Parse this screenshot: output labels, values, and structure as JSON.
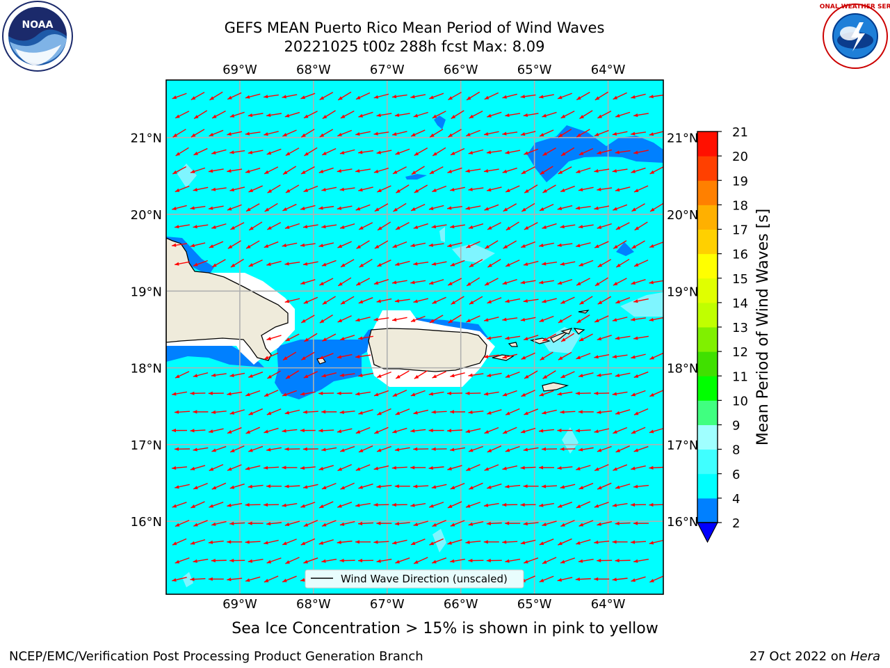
{
  "title": {
    "line1": "GEFS MEAN Puerto Rico Mean Period of Wind Waves",
    "line2": "20221025 t00z 288h fcst   Max: 8.09"
  },
  "map": {
    "lon_labels": [
      "69°W",
      "68°W",
      "67°W",
      "66°W",
      "65°W",
      "64°W"
    ],
    "lat_labels": [
      "21°N",
      "20°N",
      "19°N",
      "18°N",
      "17°N",
      "16°N"
    ],
    "lon_range": [
      -70.0,
      -63.25
    ],
    "lat_range": [
      15.05,
      21.75
    ],
    "field_fill_color": "#00ffff",
    "land_color": "#efebdb",
    "arrow_color": "#ff0000",
    "gridline_color": "#b0b0b0",
    "arrow_direction": "toward west-southwest",
    "legend_label": "Wind Wave Direction (unscaled)"
  },
  "colorbar": {
    "label": "Mean Period of Wind Waves [s]",
    "ticks": [
      "2",
      "4",
      "6",
      "8",
      "9",
      "10",
      "11",
      "12",
      "13",
      "14",
      "15",
      "16",
      "17",
      "18",
      "19",
      "20",
      "21"
    ],
    "levels": [
      2,
      4,
      6,
      8,
      9,
      10,
      11,
      12,
      13,
      14,
      15,
      16,
      17,
      18,
      19,
      20,
      21
    ],
    "colors": [
      "#0080ff",
      "#00ffff",
      "#40ffff",
      "#a0ffff",
      "#40ff80",
      "#00ff00",
      "#40e000",
      "#80f000",
      "#c0ff00",
      "#e0ff00",
      "#ffff00",
      "#ffd000",
      "#ffb000",
      "#ff8000",
      "#ff4000",
      "#ff1000"
    ],
    "underflow_color": "#0000ff"
  },
  "notes": {
    "sea_ice": "Sea Ice Concentration > 15% is shown in pink to yellow"
  },
  "footer": {
    "left": "NCEP/EMC/Verification Post Processing Product Generation Branch",
    "date": "27 Oct 2022 on ",
    "machine": "Hera"
  },
  "logos": {
    "noaa_text": "NOAA",
    "nws_text": "NATIONAL WEATHER SERVICE"
  }
}
